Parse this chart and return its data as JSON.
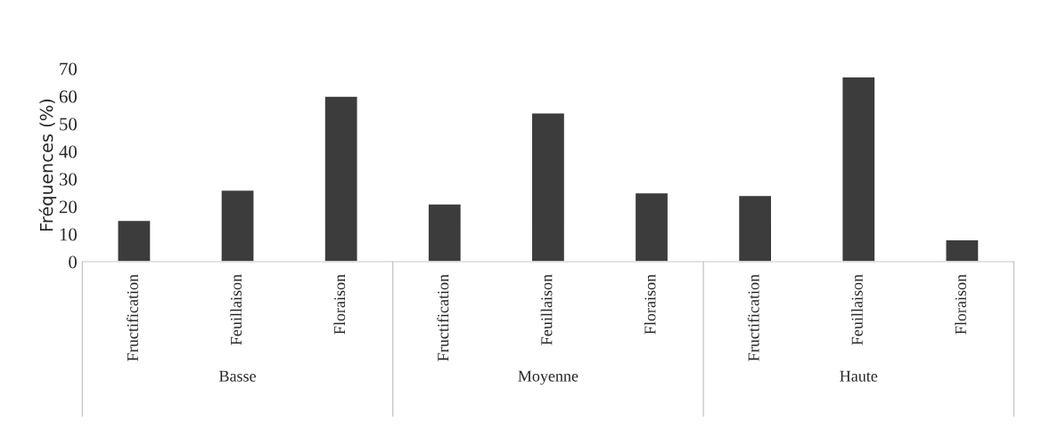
{
  "chart_data": {
    "type": "bar",
    "ylabel": "Fréquences (%)",
    "categories": [
      "Fructification",
      "Feuillaison",
      "Floraison",
      "Fructification",
      "Feuillaison",
      "Floraison",
      "Fructification",
      "Feuillaison",
      "Floraison"
    ],
    "values": [
      15,
      26,
      60,
      21,
      54,
      25,
      24,
      67,
      8
    ],
    "color": "#3c3c3c",
    "ylim": [
      0,
      70
    ],
    "yticks": [
      0,
      10,
      20,
      30,
      40,
      50,
      60,
      70
    ],
    "annotations": [
      "Basse",
      "Moyenne",
      "Haute"
    ],
    "grid": false,
    "legend": false
  }
}
